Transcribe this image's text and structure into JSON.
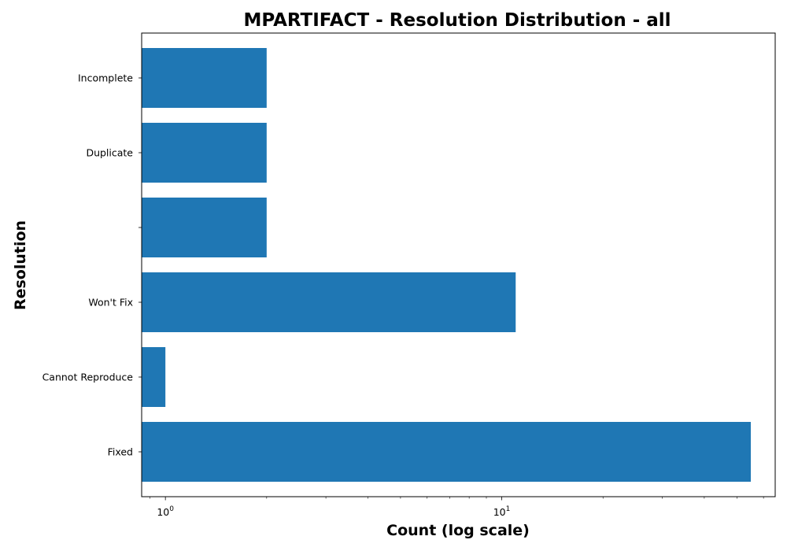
{
  "chart_data": {
    "type": "bar",
    "orientation": "horizontal",
    "title": "MPARTIFACT - Resolution Distribution - all",
    "xlabel": "Count (log scale)",
    "ylabel": "Resolution",
    "x_scale": "log",
    "xlim": [
      0.85,
      65
    ],
    "x_ticks": [
      {
        "value": 1,
        "base": "10",
        "exp": "0"
      },
      {
        "value": 10,
        "base": "10",
        "exp": "1"
      }
    ],
    "categories": [
      "Fixed",
      "Cannot Reproduce",
      "Won't Fix",
      "",
      "Duplicate",
      "Incomplete"
    ],
    "values": [
      55,
      1,
      11,
      2,
      2,
      2
    ],
    "bar_color": "#1f77b4",
    "grid": false,
    "legend": "none"
  }
}
